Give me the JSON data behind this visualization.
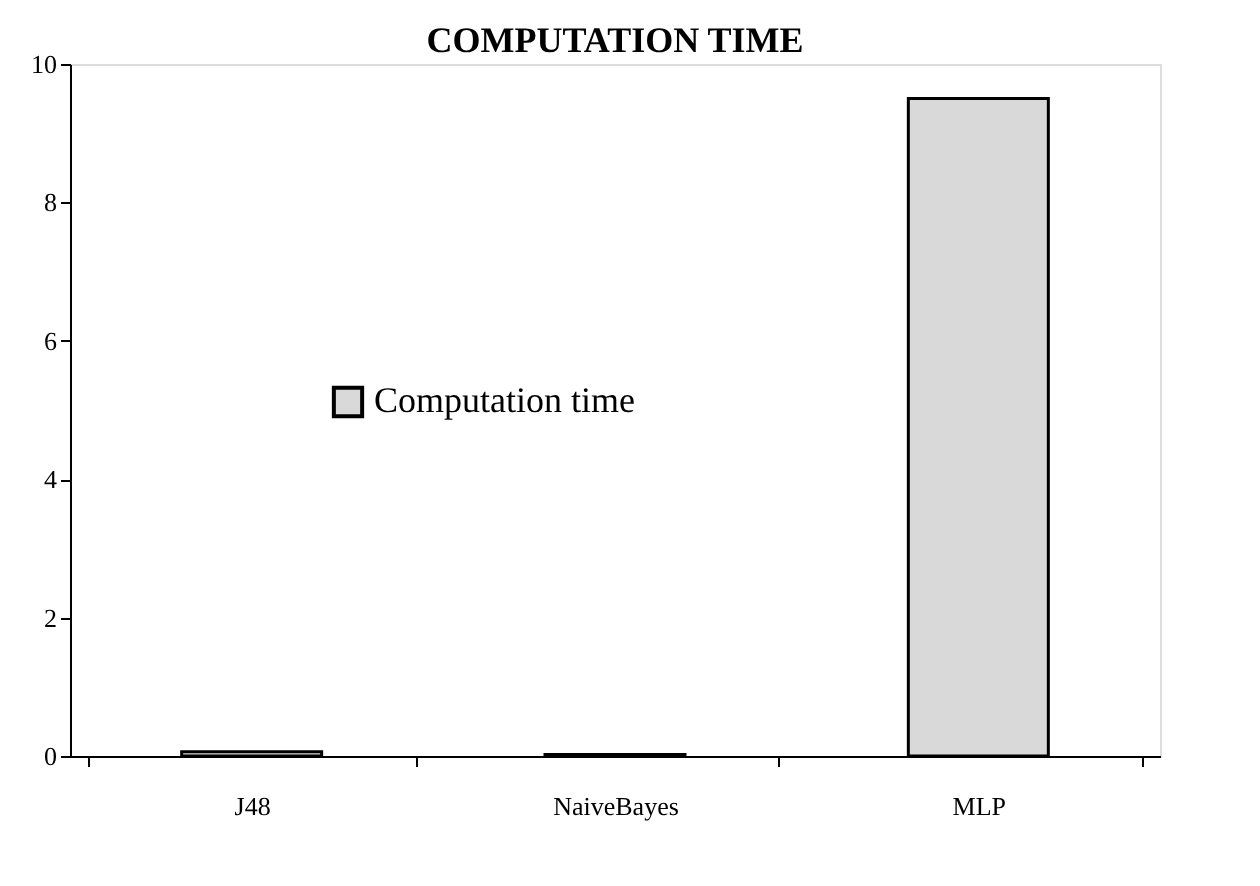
{
  "chart_data": {
    "type": "bar",
    "title": "COMPUTATION TIME",
    "categories": [
      "J48",
      "NaiveBayes",
      "MLP"
    ],
    "series": [
      {
        "name": "Computation time",
        "color": "#d9d9d9",
        "values": [
          0.06,
          0.02,
          9.5
        ]
      }
    ],
    "ylim": [
      0,
      10
    ],
    "yticks": [
      0,
      2,
      4,
      6,
      8,
      10
    ],
    "grid": false,
    "legend": "left"
  }
}
